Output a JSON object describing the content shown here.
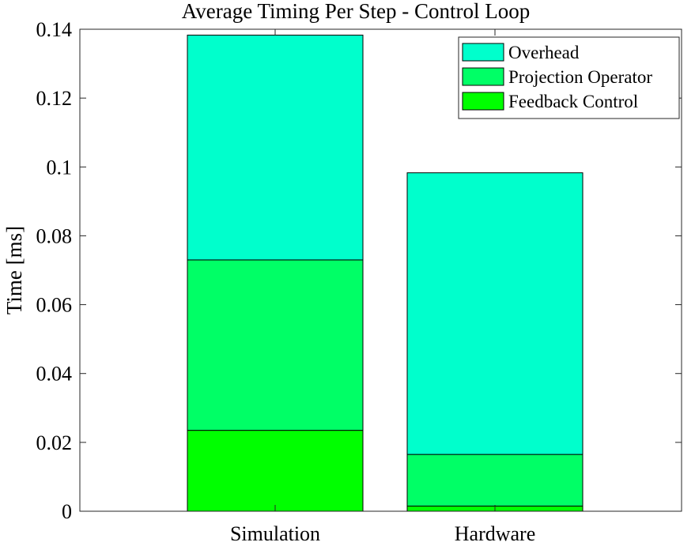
{
  "chart_data": {
    "type": "bar",
    "stacked": true,
    "title": "Average Timing Per Step - Control Loop",
    "xlabel": "",
    "ylabel": "Time [ms]",
    "categories": [
      "Simulation",
      "Hardware"
    ],
    "ylim": [
      0,
      0.14
    ],
    "yticks": [
      0,
      0.02,
      0.04,
      0.06,
      0.08,
      0.1,
      0.12,
      0.14
    ],
    "ytick_labels": [
      "0",
      "0.02",
      "0.04",
      "0.06",
      "0.08",
      "0.1",
      "0.12",
      "0.14"
    ],
    "series": [
      {
        "name": "Feedback Control",
        "values": [
          0.0235,
          0.0015
        ],
        "color": "#00ff00"
      },
      {
        "name": "Projection Operator",
        "values": [
          0.0495,
          0.015
        ],
        "color": "#00ff66"
      },
      {
        "name": "Overhead",
        "values": [
          0.0653,
          0.0818
        ],
        "color": "#00ffcc"
      }
    ],
    "legend_order": [
      "Overhead",
      "Projection Operator",
      "Feedback Control"
    ],
    "legend_position": "top-right",
    "grid": false
  }
}
